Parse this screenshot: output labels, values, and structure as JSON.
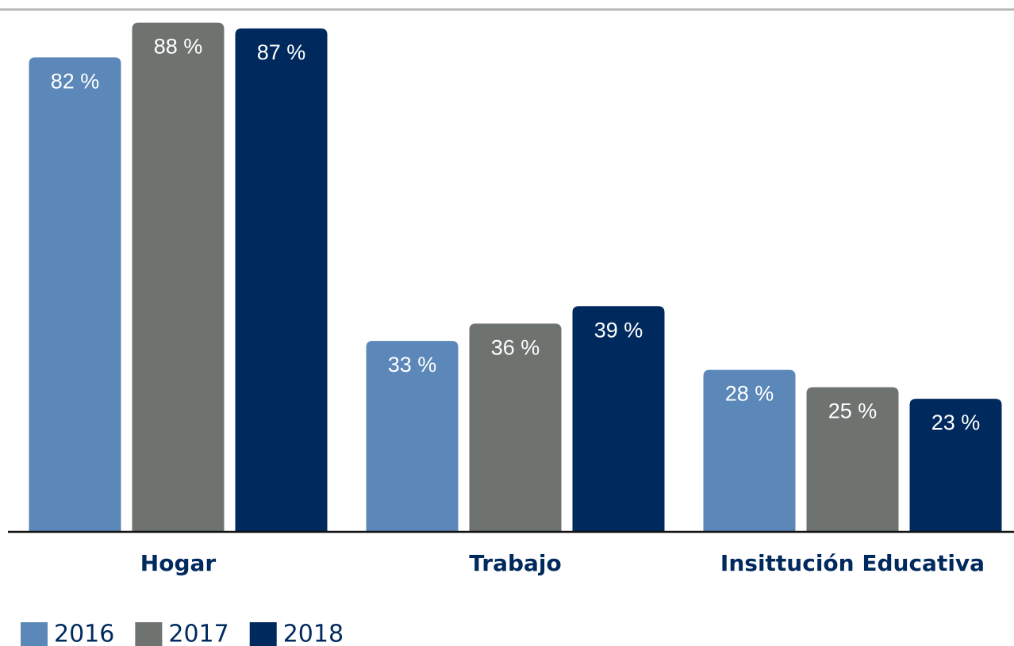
{
  "chart_data": {
    "type": "bar",
    "categories": [
      "Hogar",
      "Trabajo",
      "Insittución Educativa"
    ],
    "series": [
      {
        "name": "2016",
        "color": "#5b87b9",
        "values": [
          82,
          33,
          28
        ],
        "value_labels": [
          "82 %",
          "33 %",
          "28 %"
        ]
      },
      {
        "name": "2017",
        "color": "#6e7370",
        "values": [
          88,
          36,
          25
        ],
        "value_labels": [
          "88 %",
          "36 %",
          "25 %"
        ]
      },
      {
        "name": "2018",
        "color": "#002a5e",
        "values": [
          87,
          39,
          23
        ],
        "value_labels": [
          "87 %",
          "39 %",
          "23 %"
        ]
      }
    ],
    "ylim": [
      0,
      90
    ],
    "legend": "bottom-left"
  }
}
